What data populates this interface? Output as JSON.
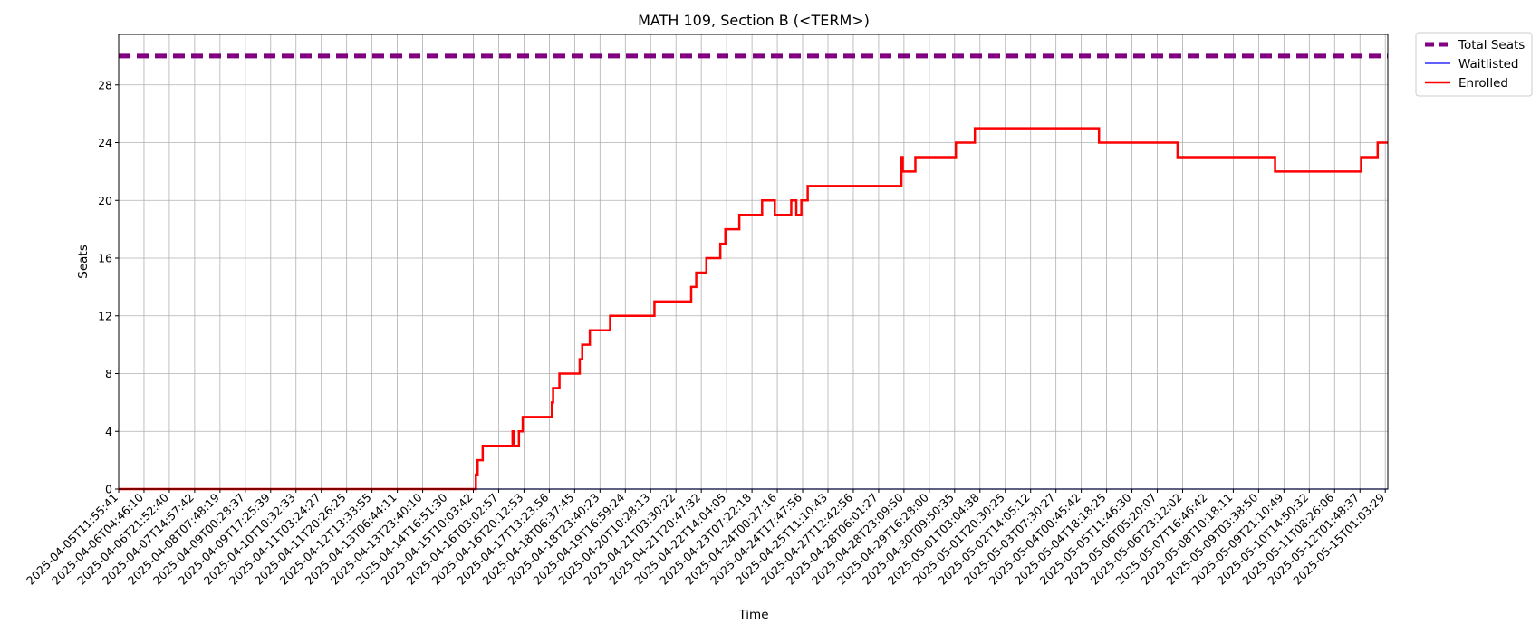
{
  "chart_data": {
    "type": "line",
    "title": "MATH 109, Section B (<TERM>)",
    "xlabel": "Time",
    "ylabel": "Seats",
    "ylim": [
      0,
      31.5
    ],
    "yticks": [
      0,
      4,
      8,
      12,
      16,
      20,
      24,
      28
    ],
    "grid": true,
    "legend_position": "outside-top-right",
    "x_ticks": [
      "2025-04-05T11:55:41",
      "2025-04-06T04:46:10",
      "2025-04-06T21:52:40",
      "2025-04-07T14:57:42",
      "2025-04-08T07:48:19",
      "2025-04-09T00:28:37",
      "2025-04-09T17:25:39",
      "2025-04-10T10:32:33",
      "2025-04-11T03:24:27",
      "2025-04-11T20:26:25",
      "2025-04-12T13:33:55",
      "2025-04-13T06:44:11",
      "2025-04-13T23:40:10",
      "2025-04-14T16:51:30",
      "2025-04-15T10:03:42",
      "2025-04-16T03:02:57",
      "2025-04-16T20:12:53",
      "2025-04-17T13:23:56",
      "2025-04-18T06:37:45",
      "2025-04-18T23:40:23",
      "2025-04-19T16:59:24",
      "2025-04-20T10:28:13",
      "2025-04-21T03:30:22",
      "2025-04-21T20:47:32",
      "2025-04-22T14:04:05",
      "2025-04-23T07:22:18",
      "2025-04-24T00:27:16",
      "2025-04-24T17:47:56",
      "2025-04-25T11:10:43",
      "2025-04-27T12:42:56",
      "2025-04-28T06:01:27",
      "2025-04-28T23:09:50",
      "2025-04-29T16:28:00",
      "2025-04-30T09:50:35",
      "2025-05-01T03:04:38",
      "2025-05-01T20:30:25",
      "2025-05-02T14:05:12",
      "2025-05-03T07:30:27",
      "2025-05-04T00:45:42",
      "2025-05-04T18:18:25",
      "2025-05-05T11:46:30",
      "2025-05-06T05:20:07",
      "2025-05-06T23:12:02",
      "2025-05-07T16:46:42",
      "2025-05-08T10:18:11",
      "2025-05-09T03:38:50",
      "2025-05-09T21:10:49",
      "2025-05-10T14:50:32",
      "2025-05-11T08:26:06",
      "2025-05-12T01:48:37",
      "2025-05-15T01:03:29"
    ],
    "x_end_index": 50.1,
    "series": [
      {
        "name": "Total Seats",
        "color": "#800080",
        "style": "dashed",
        "points": [
          [
            0,
            30
          ],
          [
            50.1,
            30
          ]
        ]
      },
      {
        "name": "Waitlisted",
        "color": "#0000ff",
        "style": "solid",
        "points": [
          [
            0,
            0
          ],
          [
            50.1,
            0
          ]
        ]
      },
      {
        "name": "Enrolled",
        "color": "#ff0000",
        "style": "step",
        "points": [
          [
            0,
            0
          ],
          [
            14.1,
            0
          ],
          [
            14.1,
            1
          ],
          [
            14.17,
            1
          ],
          [
            14.17,
            2
          ],
          [
            14.37,
            2
          ],
          [
            14.37,
            3
          ],
          [
            15.55,
            3
          ],
          [
            15.55,
            4
          ],
          [
            15.6,
            4
          ],
          [
            15.6,
            3
          ],
          [
            15.8,
            3
          ],
          [
            15.8,
            4
          ],
          [
            15.95,
            4
          ],
          [
            15.95,
            5
          ],
          [
            17.1,
            5
          ],
          [
            17.1,
            6
          ],
          [
            17.15,
            6
          ],
          [
            17.15,
            7
          ],
          [
            17.4,
            7
          ],
          [
            17.4,
            8
          ],
          [
            18.2,
            8
          ],
          [
            18.2,
            9
          ],
          [
            18.3,
            9
          ],
          [
            18.3,
            10
          ],
          [
            18.6,
            10
          ],
          [
            18.6,
            11
          ],
          [
            19.4,
            11
          ],
          [
            19.4,
            12
          ],
          [
            21.15,
            12
          ],
          [
            21.15,
            13
          ],
          [
            22.6,
            13
          ],
          [
            22.6,
            14
          ],
          [
            22.8,
            14
          ],
          [
            22.8,
            15
          ],
          [
            23.2,
            15
          ],
          [
            23.2,
            16
          ],
          [
            23.75,
            16
          ],
          [
            23.75,
            17
          ],
          [
            23.95,
            17
          ],
          [
            23.95,
            18
          ],
          [
            24.5,
            18
          ],
          [
            24.5,
            19
          ],
          [
            25.4,
            19
          ],
          [
            25.4,
            20
          ],
          [
            25.9,
            20
          ],
          [
            25.9,
            19
          ],
          [
            26.55,
            19
          ],
          [
            26.55,
            20
          ],
          [
            26.75,
            20
          ],
          [
            26.75,
            19
          ],
          [
            26.95,
            19
          ],
          [
            26.95,
            20
          ],
          [
            27.2,
            20
          ],
          [
            27.2,
            21
          ],
          [
            30.9,
            21
          ],
          [
            30.9,
            23
          ],
          [
            30.95,
            23
          ],
          [
            30.95,
            22
          ],
          [
            31.45,
            22
          ],
          [
            31.45,
            23
          ],
          [
            33.05,
            23
          ],
          [
            33.05,
            24
          ],
          [
            33.8,
            24
          ],
          [
            33.8,
            25
          ],
          [
            38.7,
            25
          ],
          [
            38.7,
            24
          ],
          [
            41.8,
            24
          ],
          [
            41.8,
            23
          ],
          [
            45.65,
            23
          ],
          [
            45.65,
            22
          ],
          [
            49.05,
            22
          ],
          [
            49.05,
            23
          ],
          [
            49.7,
            23
          ],
          [
            49.7,
            24
          ],
          [
            50.1,
            24
          ]
        ]
      }
    ]
  }
}
